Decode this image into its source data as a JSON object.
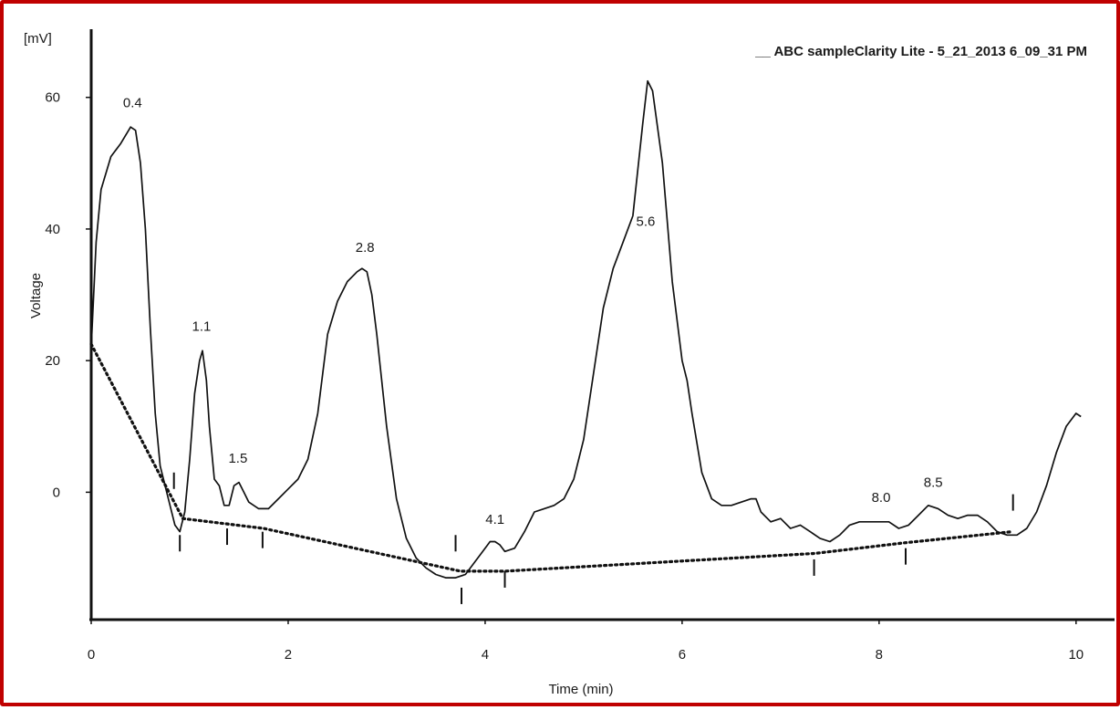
{
  "chart_data": {
    "type": "line",
    "legend": "__ ABC sampleClarity Lite - 5_21_2013 6_09_31 PM",
    "legend_position": "top-right",
    "unit_label": "[mV]",
    "xlabel": "Time (min)",
    "ylabel": "Voltage",
    "xlim": [
      0,
      10.4
    ],
    "ylim": [
      -19.5,
      70.5
    ],
    "x_ticks": [
      0,
      2,
      4,
      6,
      8,
      10
    ],
    "y_ticks": [
      0,
      20,
      40,
      60
    ],
    "grid": false,
    "series": [
      {
        "kind": "signal",
        "x": [
          0.0,
          0.05,
          0.1,
          0.2,
          0.3,
          0.4,
          0.45,
          0.5,
          0.55,
          0.6,
          0.65,
          0.7,
          0.8,
          0.85,
          0.9,
          0.95,
          1.0,
          1.05,
          1.1,
          1.13,
          1.17,
          1.2,
          1.25,
          1.3,
          1.35,
          1.4,
          1.45,
          1.5,
          1.55,
          1.6,
          1.7,
          1.8,
          1.9,
          2.0,
          2.1,
          2.2,
          2.3,
          2.4,
          2.5,
          2.6,
          2.7,
          2.75,
          2.8,
          2.85,
          2.9,
          3.0,
          3.1,
          3.2,
          3.3,
          3.4,
          3.5,
          3.6,
          3.7,
          3.8,
          3.9,
          4.0,
          4.05,
          4.1,
          4.15,
          4.2,
          4.3,
          4.4,
          4.5,
          4.6,
          4.7,
          4.8,
          4.9,
          5.0,
          5.1,
          5.2,
          5.3,
          5.4,
          5.5,
          5.6,
          5.65,
          5.7,
          5.8,
          5.9,
          6.0,
          6.05,
          6.1,
          6.2,
          6.3,
          6.4,
          6.5,
          6.6,
          6.7,
          6.75,
          6.8,
          6.9,
          7.0,
          7.1,
          7.2,
          7.3,
          7.4,
          7.5,
          7.6,
          7.7,
          7.8,
          7.9,
          8.0,
          8.1,
          8.2,
          8.3,
          8.4,
          8.5,
          8.6,
          8.7,
          8.8,
          8.9,
          9.0,
          9.1,
          9.2,
          9.3,
          9.4,
          9.5,
          9.6,
          9.7,
          9.8,
          9.9,
          10.0,
          10.05
        ],
        "y": [
          22,
          38,
          46,
          51,
          53,
          55.5,
          55,
          50,
          40,
          25,
          12,
          4,
          -2,
          -5,
          -6,
          -3,
          5,
          15,
          20,
          21.5,
          17,
          10,
          2,
          1,
          -2,
          -2,
          1,
          1.5,
          0,
          -1.5,
          -2.5,
          -2.5,
          -1,
          0.5,
          2,
          5,
          12,
          24,
          29,
          32,
          33.5,
          34,
          33.5,
          30,
          24,
          10,
          -1,
          -7,
          -10,
          -11.5,
          -12.5,
          -13,
          -13,
          -12.5,
          -10.5,
          -8.5,
          -7.5,
          -7.5,
          -8,
          -9,
          -8.5,
          -6,
          -3,
          -2.5,
          -2,
          -1,
          2,
          8,
          18,
          28,
          34,
          38,
          42,
          56,
          62.5,
          61,
          50,
          32,
          20,
          17,
          12,
          3,
          -1,
          -2,
          -2,
          -1.5,
          -1,
          -1,
          -3,
          -4.5,
          -4,
          -5.5,
          -5,
          -6,
          -7,
          -7.5,
          -6.5,
          -5,
          -4.5,
          -4.5,
          -4.5,
          -4.5,
          -5.5,
          -5,
          -3.5,
          -2,
          -2.5,
          -3.5,
          -4,
          -3.5,
          -3.5,
          -4.5,
          -6,
          -6.5,
          -6.5,
          -5.5,
          -3,
          1,
          6,
          10,
          12,
          11.5
        ]
      },
      {
        "kind": "baseline",
        "x": [
          0.0,
          0.93,
          1.75,
          3.75,
          4.2,
          7.35,
          8.25,
          9.35
        ],
        "y": [
          22.5,
          -4,
          -5.5,
          -12,
          -12,
          -9.3,
          -7.7,
          -6
        ]
      }
    ],
    "annotations": [
      {
        "text": "0.4",
        "x": 0.42,
        "y": 58.5
      },
      {
        "text": "1.1",
        "x": 1.12,
        "y": 24.5
      },
      {
        "text": "1.5",
        "x": 1.49,
        "y": 4.5
      },
      {
        "text": "2.8",
        "x": 2.78,
        "y": 36.5
      },
      {
        "text": "4.1",
        "x": 4.1,
        "y": -4.8
      },
      {
        "text": "5.6",
        "x": 5.63,
        "y": 40.5
      },
      {
        "text": "8.0",
        "x": 8.02,
        "y": -1.5
      },
      {
        "text": "8.5",
        "x": 8.55,
        "y": 0.8
      }
    ],
    "markers": [
      {
        "x": 0.84,
        "y": 0.5,
        "dir": "up"
      },
      {
        "x": 0.9,
        "y": -6.5,
        "dir": "down"
      },
      {
        "x": 1.38,
        "y": -5.5,
        "dir": "down"
      },
      {
        "x": 1.74,
        "y": -6,
        "dir": "down"
      },
      {
        "x": 3.7,
        "y": -9,
        "dir": "up"
      },
      {
        "x": 3.76,
        "y": -14.5,
        "dir": "down"
      },
      {
        "x": 4.2,
        "y": -12,
        "dir": "down"
      },
      {
        "x": 7.34,
        "y": -10.2,
        "dir": "down"
      },
      {
        "x": 8.27,
        "y": -8.5,
        "dir": "down"
      },
      {
        "x": 9.36,
        "y": -2.8,
        "dir": "up"
      }
    ]
  }
}
